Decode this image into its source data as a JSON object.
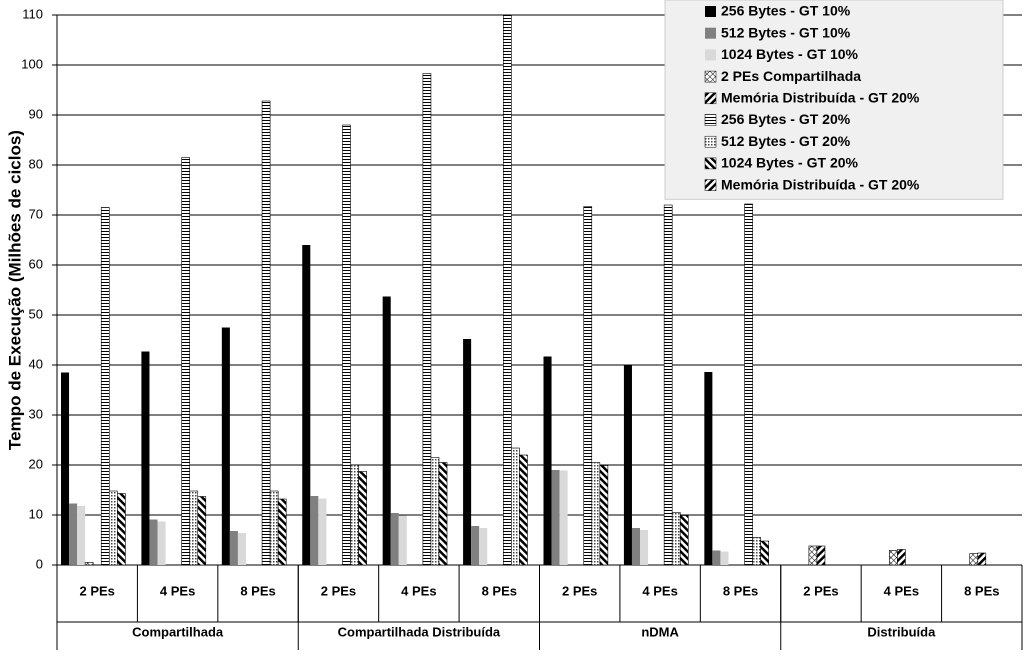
{
  "chart_data": {
    "type": "bar",
    "y_label": "Tempo de Execução (Milhões de ciclos)",
    "groups": [
      {
        "name": "Compartilhada",
        "categories": [
          "2 PEs",
          "4 PEs",
          "8 PEs"
        ]
      },
      {
        "name": "Compartilhada Distribuída",
        "categories": [
          "2 PEs",
          "4 PEs",
          "8 PEs"
        ]
      },
      {
        "name": "nDMA",
        "categories": [
          "2 PEs",
          "4 PEs",
          "8 PEs"
        ]
      },
      {
        "name": "Distribuída",
        "categories": [
          "2 PEs",
          "4 PEs",
          "8 PEs"
        ]
      }
    ],
    "ylim": [
      0,
      110
    ],
    "yticks": [
      0,
      10,
      20,
      30,
      40,
      50,
      60,
      70,
      80,
      90,
      100,
      110
    ],
    "grid": true,
    "legend": "top-right",
    "series": [
      {
        "name": "256 Bytes - GT 10%",
        "color": "#000000",
        "values": [
          38.5,
          42.7,
          47.5,
          64,
          53.7,
          45.2,
          41.7,
          40.1,
          38.6,
          null,
          null,
          null
        ]
      },
      {
        "name": "512 Bytes - GT 10%",
        "color": "#808080",
        "values": [
          12.3,
          9.1,
          6.8,
          13.8,
          10.4,
          7.8,
          19,
          7.4,
          2.9,
          null,
          null,
          null
        ]
      },
      {
        "name": "1024 Bytes - GT 10%",
        "color": "#d9d9d9",
        "values": [
          11.8,
          8.7,
          6.4,
          13.3,
          9.9,
          7.4,
          18.9,
          7,
          2.7,
          null,
          null,
          null
        ]
      },
      {
        "name": "2 PEs   Compartilhada",
        "pattern": "crosshatch",
        "values": [
          0.5,
          null,
          null,
          null,
          null,
          null,
          null,
          null,
          null,
          3.8,
          2.9,
          2.3
        ]
      },
      {
        "name": "Memória Distribuída - GT 20%",
        "pattern": "diag",
        "values": [
          null,
          null,
          null,
          null,
          null,
          null,
          null,
          null,
          null,
          3.8,
          3.1,
          2.4
        ]
      },
      {
        "name": "256 Bytes - GT 20%",
        "pattern": "hstripe",
        "values": [
          71.5,
          81.5,
          92.8,
          88,
          98.3,
          110,
          71.7,
          72,
          72.2,
          null,
          null,
          null
        ]
      },
      {
        "name": "512 Bytes - GT 20%",
        "pattern": "dots",
        "values": [
          14.8,
          14.8,
          14.8,
          20,
          21.5,
          23.4,
          20.5,
          10.5,
          5.5,
          null,
          null,
          null
        ]
      },
      {
        "name": "1024 Bytes - GT 20%",
        "pattern": "backdiag",
        "values": [
          14.3,
          13.7,
          13.2,
          18.7,
          20.5,
          22,
          19.9,
          9.9,
          4.8,
          null,
          null,
          null
        ]
      },
      {
        "name": "Memória Distribuída - GT 20%",
        "pattern": "diag",
        "values": [
          null,
          null,
          null,
          null,
          null,
          null,
          null,
          null,
          null,
          null,
          null,
          null
        ]
      }
    ]
  }
}
